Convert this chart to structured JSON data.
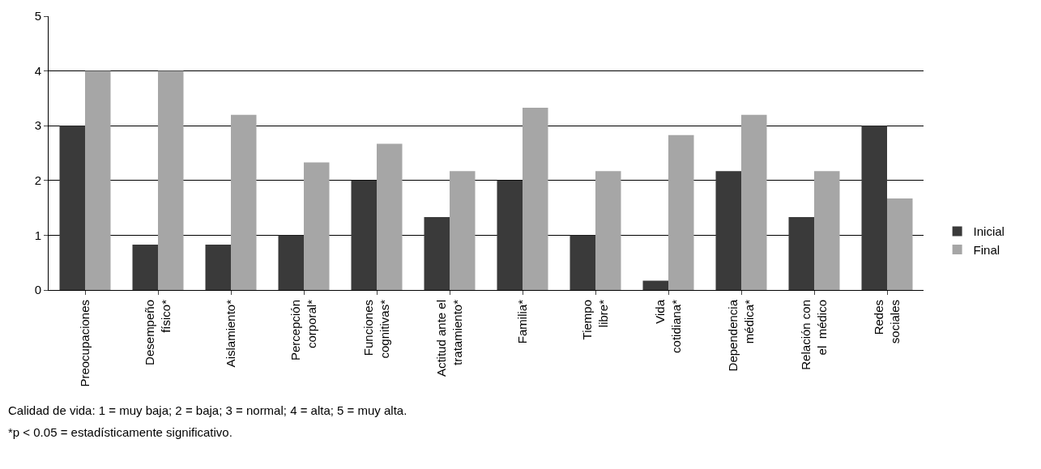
{
  "chart_data": {
    "type": "bar",
    "categories": [
      "Preocupaciones",
      "Desempeño\nfísico*",
      "Aislamiento*",
      "Percepción\ncorporal*",
      "Funciones\ncognitivas*",
      "Actitud ante el\ntratamiento*",
      "Familia*",
      "Tiempo\nlibre*",
      "Vida\ncotidiana*",
      "Dependencia\nmédica*",
      "Relación con\nel  médico",
      "Redes\nsociales"
    ],
    "series": [
      {
        "name": "Inicial",
        "color": "#3a3a3a",
        "values": [
          3,
          0.83,
          0.83,
          1,
          2,
          1.33,
          2,
          1,
          0.17,
          2.17,
          1.33,
          3
        ]
      },
      {
        "name": "Final",
        "color": "#a6a6a6",
        "values": [
          4,
          4,
          3.2,
          2.33,
          2.67,
          2.17,
          3.33,
          2.17,
          2.83,
          3.2,
          2.17,
          1.67
        ]
      }
    ],
    "ylim": [
      0,
      5
    ],
    "yticks": [
      0,
      1,
      2,
      3,
      4,
      5
    ],
    "grid": "y",
    "legend": "right",
    "annotations": [
      "Calidad de vida: 1 = muy baja; 2 = baja; 3 = normal; 4 = alta; 5 = muy alta.",
      "*p < 0.05 = estadísticamente significativo."
    ]
  }
}
